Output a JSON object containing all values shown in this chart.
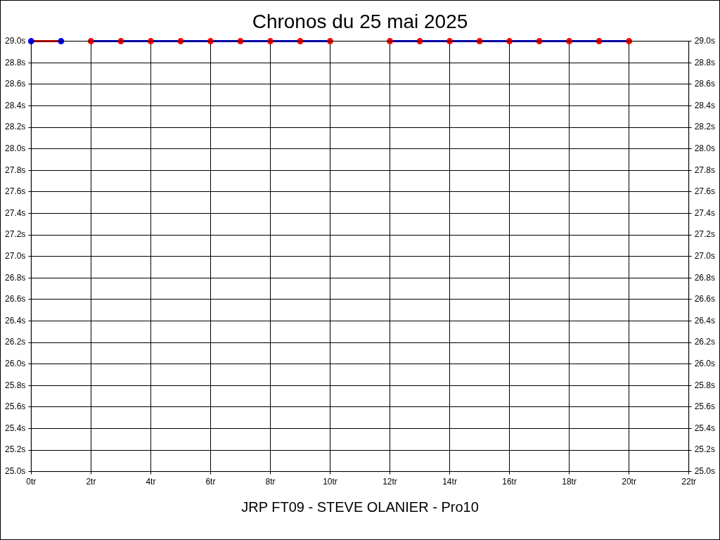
{
  "chart_data": {
    "type": "line",
    "title": "Chronos du 25 mai 2025",
    "xlabel": "JRP FT09 - STEVE OLANIER - Pro10",
    "series": [
      {
        "color": "#ff0000",
        "colors": [
          "#0000ff",
          "#0000ff"
        ],
        "x": [
          0,
          1
        ],
        "values": [
          29.0,
          29.0
        ]
      },
      {
        "color": "#0000ff",
        "colors": [
          "#ff0000",
          "#ff0000",
          "#ff0000",
          "#ff0000",
          "#ff0000",
          "#ff0000",
          "#ff0000",
          "#ff0000",
          "#ff0000",
          null,
          "#ff0000",
          "#ff0000",
          "#ff0000",
          "#ff0000",
          "#ff0000",
          "#ff0000",
          "#ff0000",
          "#ff0000",
          "#ff0000"
        ],
        "x": [
          2,
          3,
          4,
          5,
          6,
          7,
          8,
          9,
          10,
          11,
          12,
          13,
          14,
          15,
          16,
          17,
          18,
          19,
          20
        ],
        "values": [
          29.0,
          29.0,
          29.0,
          29.0,
          29.0,
          29.0,
          29.0,
          29.0,
          29.0,
          null,
          29.0,
          29.0,
          29.0,
          29.0,
          29.0,
          29.0,
          29.0,
          29.0,
          29.0
        ]
      }
    ],
    "xlim": [
      0,
      22
    ],
    "xticks": [
      {
        "value": 0,
        "label": "0tr"
      },
      {
        "value": 2,
        "label": "2tr"
      },
      {
        "value": 4,
        "label": "4tr"
      },
      {
        "value": 6,
        "label": "6tr"
      },
      {
        "value": 8,
        "label": "8tr"
      },
      {
        "value": 10,
        "label": "10tr"
      },
      {
        "value": 12,
        "label": "12tr"
      },
      {
        "value": 14,
        "label": "14tr"
      },
      {
        "value": 16,
        "label": "16tr"
      },
      {
        "value": 18,
        "label": "18tr"
      },
      {
        "value": 20,
        "label": "20tr"
      },
      {
        "value": 22,
        "label": "22tr"
      }
    ],
    "ylim": [
      25.0,
      29.0
    ],
    "yticks": [
      {
        "value": 25.0,
        "label": "25.0s"
      },
      {
        "value": 25.2,
        "label": "25.2s"
      },
      {
        "value": 25.4,
        "label": "25.4s"
      },
      {
        "value": 25.6,
        "label": "25.6s"
      },
      {
        "value": 25.8,
        "label": "25.8s"
      },
      {
        "value": 26.0,
        "label": "26.0s"
      },
      {
        "value": 26.2,
        "label": "26.2s"
      },
      {
        "value": 26.4,
        "label": "26.4s"
      },
      {
        "value": 26.6,
        "label": "26.6s"
      },
      {
        "value": 26.8,
        "label": "26.8s"
      },
      {
        "value": 27.0,
        "label": "27.0s"
      },
      {
        "value": 27.2,
        "label": "27.2s"
      },
      {
        "value": 27.4,
        "label": "27.4s"
      },
      {
        "value": 27.6,
        "label": "27.6s"
      },
      {
        "value": 27.8,
        "label": "27.8s"
      },
      {
        "value": 28.0,
        "label": "28.0s"
      },
      {
        "value": 28.2,
        "label": "28.2s"
      },
      {
        "value": 28.4,
        "label": "28.4s"
      },
      {
        "value": 28.6,
        "label": "28.6s"
      },
      {
        "value": 28.8,
        "label": "28.8s"
      },
      {
        "value": 29.0,
        "label": "29.0s"
      }
    ],
    "y2lim": [
      25.0,
      29.0
    ],
    "y2ticks": [
      {
        "value": 25.0,
        "label": "25.0s"
      },
      {
        "value": 25.2,
        "label": "25.2s"
      },
      {
        "value": 25.4,
        "label": "25.4s"
      },
      {
        "value": 25.6,
        "label": "25.6s"
      },
      {
        "value": 25.8,
        "label": "25.8s"
      },
      {
        "value": 26.0,
        "label": "26.0s"
      },
      {
        "value": 26.2,
        "label": "26.2s"
      },
      {
        "value": 26.4,
        "label": "26.4s"
      },
      {
        "value": 26.6,
        "label": "26.6s"
      },
      {
        "value": 26.8,
        "label": "26.8s"
      },
      {
        "value": 27.0,
        "label": "27.0s"
      },
      {
        "value": 27.2,
        "label": "27.2s"
      },
      {
        "value": 27.4,
        "label": "27.4s"
      },
      {
        "value": 27.6,
        "label": "27.6s"
      },
      {
        "value": 27.8,
        "label": "27.8s"
      },
      {
        "value": 28.0,
        "label": "28.0s"
      },
      {
        "value": 28.2,
        "label": "28.2s"
      },
      {
        "value": 28.4,
        "label": "28.4s"
      },
      {
        "value": 28.6,
        "label": "28.6s"
      },
      {
        "value": 28.8,
        "label": "28.8s"
      },
      {
        "value": 29.0,
        "label": "29.0s"
      }
    ],
    "grid": true,
    "legend": false,
    "marker": "circle",
    "line_style": "solid"
  }
}
